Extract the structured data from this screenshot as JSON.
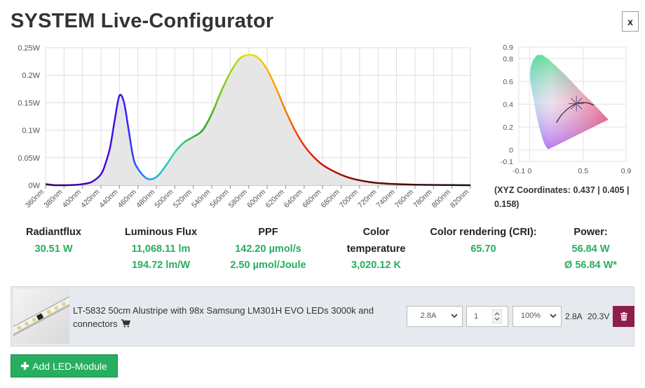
{
  "page": {
    "title": "SYSTEM Live-Configurator",
    "close_label": "x"
  },
  "chart_data": [
    {
      "type": "area",
      "title": "",
      "xlabel": "",
      "ylabel": "",
      "xlim": [
        360,
        820
      ],
      "ylim": [
        0,
        0.25
      ],
      "x_ticks": [
        "360nm",
        "380nm",
        "400nm",
        "420nm",
        "440nm",
        "460nm",
        "480nm",
        "500nm",
        "520nm",
        "540nm",
        "560nm",
        "580nm",
        "600nm",
        "620nm",
        "640nm",
        "660nm",
        "680nm",
        "700nm",
        "720nm",
        "740nm",
        "760nm",
        "780nm",
        "800nm",
        "820nm"
      ],
      "y_ticks": [
        "0W",
        "0.05W",
        "0.1W",
        "0.15W",
        "0.2W",
        "0.25W"
      ],
      "y_tick_values": [
        0,
        0.05,
        0.1,
        0.15,
        0.2,
        0.25
      ],
      "grid": true,
      "line_color": "spectral (wavelength-colored)",
      "fill_color": "#e6e6e6",
      "x": [
        360,
        370,
        380,
        390,
        400,
        410,
        420,
        425,
        430,
        435,
        440,
        445,
        450,
        455,
        460,
        470,
        480,
        490,
        500,
        510,
        520,
        530,
        540,
        550,
        560,
        570,
        580,
        590,
        600,
        610,
        620,
        630,
        640,
        650,
        660,
        670,
        680,
        690,
        700,
        710,
        720,
        740,
        760,
        780,
        800,
        820
      ],
      "values": [
        0.002,
        0.0,
        0.0,
        0.0005,
        0.002,
        0.006,
        0.02,
        0.04,
        0.07,
        0.12,
        0.163,
        0.15,
        0.1,
        0.05,
        0.03,
        0.012,
        0.015,
        0.035,
        0.06,
        0.078,
        0.088,
        0.1,
        0.13,
        0.17,
        0.205,
        0.23,
        0.237,
        0.232,
        0.21,
        0.175,
        0.135,
        0.1,
        0.072,
        0.052,
        0.037,
        0.027,
        0.019,
        0.013,
        0.009,
        0.006,
        0.004,
        0.002,
        0.001,
        0.0005,
        0.0003,
        0.0
      ]
    },
    {
      "type": "scatter",
      "title": "",
      "xlabel": "",
      "ylabel": "",
      "xlim": [
        -0.1,
        0.9
      ],
      "ylim": [
        -0.1,
        0.9
      ],
      "x_ticks": [
        "-0.1",
        "0",
        "0.5",
        "0.9"
      ],
      "y_ticks": [
        "0.9",
        "0.8",
        "0.6",
        "0.4",
        "0.2",
        "0",
        "-0.1"
      ],
      "grid": true,
      "locus": [
        [
          0.175,
          0.005
        ],
        [
          0.16,
          0.02
        ],
        [
          0.14,
          0.05
        ],
        [
          0.12,
          0.1
        ],
        [
          0.09,
          0.2
        ],
        [
          0.065,
          0.3
        ],
        [
          0.046,
          0.4
        ],
        [
          0.025,
          0.5
        ],
        [
          0.01,
          0.58
        ],
        [
          0.005,
          0.65
        ],
        [
          0.01,
          0.72
        ],
        [
          0.03,
          0.78
        ],
        [
          0.07,
          0.83
        ],
        [
          0.12,
          0.83
        ],
        [
          0.18,
          0.79
        ],
        [
          0.25,
          0.73
        ],
        [
          0.33,
          0.66
        ],
        [
          0.41,
          0.58
        ],
        [
          0.49,
          0.5
        ],
        [
          0.57,
          0.43
        ],
        [
          0.64,
          0.36
        ],
        [
          0.735,
          0.265
        ]
      ],
      "planckian": [
        [
          0.25,
          0.24
        ],
        [
          0.3,
          0.31
        ],
        [
          0.35,
          0.355
        ],
        [
          0.4,
          0.39
        ],
        [
          0.45,
          0.41
        ],
        [
          0.5,
          0.415
        ],
        [
          0.55,
          0.41
        ],
        [
          0.6,
          0.39
        ]
      ],
      "point": {
        "x": 0.437,
        "y": 0.405
      }
    }
  ],
  "cie": {
    "coords_text": "(XYZ Coordinates: 0.437 | 0.405 | 0.158)"
  },
  "stats": [
    {
      "label": "Radiantflux",
      "values": [
        "30.51 W"
      ]
    },
    {
      "label": "Luminous Flux",
      "values": [
        "11,068.11 lm",
        "194.72 lm/W"
      ]
    },
    {
      "label": "PPF",
      "values": [
        "142.20 µmol/s",
        "2.50 µmol/Joule"
      ]
    },
    {
      "label": "Color temperature",
      "values": [
        "3,020.12 K"
      ]
    },
    {
      "label": "Color rendering (CRI):",
      "values": [
        "65.70"
      ]
    },
    {
      "label": "Power:",
      "values": [
        "56.84 W",
        "Ø 56.84 W*"
      ]
    }
  ],
  "module": {
    "description": "LT-5832 50cm Alustripe with 98x Samsung LM301H EVO LEDs 3000k and connectors",
    "cart_icon": "shopping-cart-icon",
    "current_select": "2.8A",
    "quantity": "1",
    "dimming_select": "100%",
    "current": "2.8A",
    "voltage": "20.3V",
    "delete_icon": "trash-icon",
    "delete_color": "#8e1e4b"
  },
  "add_button": {
    "label": "Add LED-Module",
    "icon": "plus-icon",
    "color": "#27ae60"
  }
}
